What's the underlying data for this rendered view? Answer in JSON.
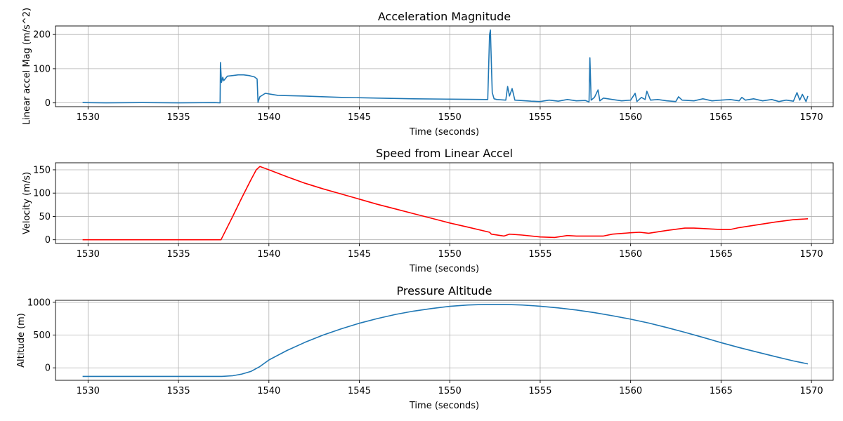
{
  "figure": {
    "background": "#ffffff"
  },
  "chart_data": [
    {
      "type": "line",
      "title": "Acceleration Magnitude",
      "xlabel": "Time (seconds)",
      "ylabel": "Linear accel Mag (m/s^2)",
      "xlim": [
        1528.2,
        1571.2
      ],
      "ylim": [
        -11,
        225
      ],
      "xticks": [
        1530,
        1535,
        1540,
        1545,
        1550,
        1555,
        1560,
        1565,
        1570
      ],
      "yticks": [
        0,
        100,
        200
      ],
      "grid": true,
      "series": [
        {
          "color": "#1f77b4",
          "x": [
            1529.7,
            1531,
            1533,
            1535,
            1537.0,
            1537.3,
            1537.32,
            1537.38,
            1537.45,
            1537.5,
            1537.7,
            1538.0,
            1538.3,
            1538.6,
            1538.9,
            1539.2,
            1539.35,
            1539.4,
            1539.5,
            1539.8,
            1540.5,
            1542,
            1544,
            1546,
            1548,
            1550,
            1552.1,
            1552.2,
            1552.25,
            1552.3,
            1552.35,
            1552.45,
            1552.6,
            1553.1,
            1553.2,
            1553.3,
            1553.45,
            1553.6,
            1554.5,
            1555.0,
            1555.5,
            1556.0,
            1556.5,
            1557.0,
            1557.5,
            1557.7,
            1557.75,
            1557.82,
            1558.0,
            1558.2,
            1558.3,
            1558.5,
            1559.0,
            1559.5,
            1560.0,
            1560.25,
            1560.35,
            1560.6,
            1560.8,
            1560.9,
            1561.1,
            1561.5,
            1562.0,
            1562.5,
            1562.65,
            1562.85,
            1563.5,
            1564.0,
            1564.5,
            1565.0,
            1565.5,
            1566.0,
            1566.15,
            1566.35,
            1566.8,
            1567.3,
            1567.8,
            1568.2,
            1568.6,
            1569.0,
            1569.2,
            1569.35,
            1569.5,
            1569.7,
            1569.8
          ],
          "y": [
            1,
            0,
            1,
            0,
            1,
            0,
            118,
            60,
            75,
            65,
            78,
            80,
            82,
            82,
            80,
            76,
            70,
            2,
            18,
            28,
            22,
            20,
            16,
            14,
            12,
            11,
            10,
            200,
            213,
            120,
            30,
            12,
            10,
            8,
            48,
            20,
            42,
            8,
            5,
            4,
            8,
            5,
            10,
            6,
            7,
            3,
            132,
            8,
            16,
            38,
            6,
            14,
            10,
            6,
            8,
            28,
            4,
            16,
            10,
            34,
            8,
            10,
            6,
            4,
            18,
            8,
            6,
            12,
            6,
            8,
            10,
            6,
            16,
            8,
            12,
            6,
            10,
            4,
            8,
            5,
            30,
            8,
            25,
            4,
            20
          ]
        }
      ]
    },
    {
      "type": "line",
      "title": "Speed from Linear Accel",
      "xlabel": "Time (seconds)",
      "ylabel": "Velocity (m/s)",
      "xlim": [
        1528.2,
        1571.2
      ],
      "ylim": [
        -8,
        165
      ],
      "xticks": [
        1530,
        1535,
        1540,
        1545,
        1550,
        1555,
        1560,
        1565,
        1570
      ],
      "yticks": [
        0,
        50,
        100,
        150
      ],
      "grid": true,
      "series": [
        {
          "color": "#ff0000",
          "x": [
            1529.7,
            1537.35,
            1538.0,
            1538.5,
            1539.0,
            1539.3,
            1539.5,
            1540.0,
            1541.0,
            1542.0,
            1543.0,
            1544.0,
            1545.0,
            1546.0,
            1547.0,
            1548.0,
            1549.0,
            1550.0,
            1551.0,
            1552.2,
            1552.3,
            1553.0,
            1553.3,
            1554.0,
            1555.0,
            1555.8,
            1556.5,
            1557.0,
            1557.8,
            1558.5,
            1559.0,
            1560.0,
            1560.5,
            1561.0,
            1562.0,
            1563.0,
            1563.5,
            1564.0,
            1564.5,
            1565.0,
            1565.5,
            1566.0,
            1567.0,
            1568.0,
            1569.0,
            1569.8
          ],
          "y": [
            0,
            0,
            50,
            90,
            128,
            150,
            157,
            150,
            135,
            121,
            109,
            98,
            87,
            76,
            66,
            56,
            46,
            36,
            27,
            16,
            12,
            8,
            12,
            10,
            6,
            5,
            9,
            8,
            8,
            8,
            12,
            15,
            16,
            14,
            20,
            25,
            25,
            24,
            23,
            22,
            22,
            26,
            32,
            38,
            43,
            45
          ]
        }
      ]
    },
    {
      "type": "line",
      "title": "Pressure Altitude",
      "xlabel": "Time (seconds)",
      "ylabel": "Altitude (m)",
      "xlim": [
        1528.2,
        1571.2
      ],
      "ylim": [
        -190,
        1030
      ],
      "xticks": [
        1530,
        1535,
        1540,
        1545,
        1550,
        1555,
        1560,
        1565,
        1570
      ],
      "yticks": [
        0,
        500,
        1000
      ],
      "grid": true,
      "series": [
        {
          "color": "#1f77b4",
          "x": [
            1529.7,
            1537.4,
            1538.0,
            1538.5,
            1539.0,
            1539.5,
            1540.0,
            1541.0,
            1542.0,
            1543.0,
            1544.0,
            1545.0,
            1546.0,
            1547.0,
            1548.0,
            1549.0,
            1550.0,
            1551.0,
            1552.0,
            1553.0,
            1554.0,
            1555.0,
            1556.0,
            1557.0,
            1558.0,
            1559.0,
            1560.0,
            1561.0,
            1562.0,
            1563.0,
            1564.0,
            1565.0,
            1566.0,
            1567.0,
            1568.0,
            1569.0,
            1569.8
          ],
          "y": [
            -130,
            -130,
            -120,
            -95,
            -55,
            20,
            120,
            265,
            390,
            500,
            595,
            680,
            752,
            815,
            865,
            905,
            938,
            958,
            968,
            968,
            958,
            940,
            914,
            882,
            842,
            795,
            742,
            683,
            615,
            542,
            465,
            385,
            310,
            240,
            172,
            105,
            60
          ]
        }
      ]
    }
  ]
}
